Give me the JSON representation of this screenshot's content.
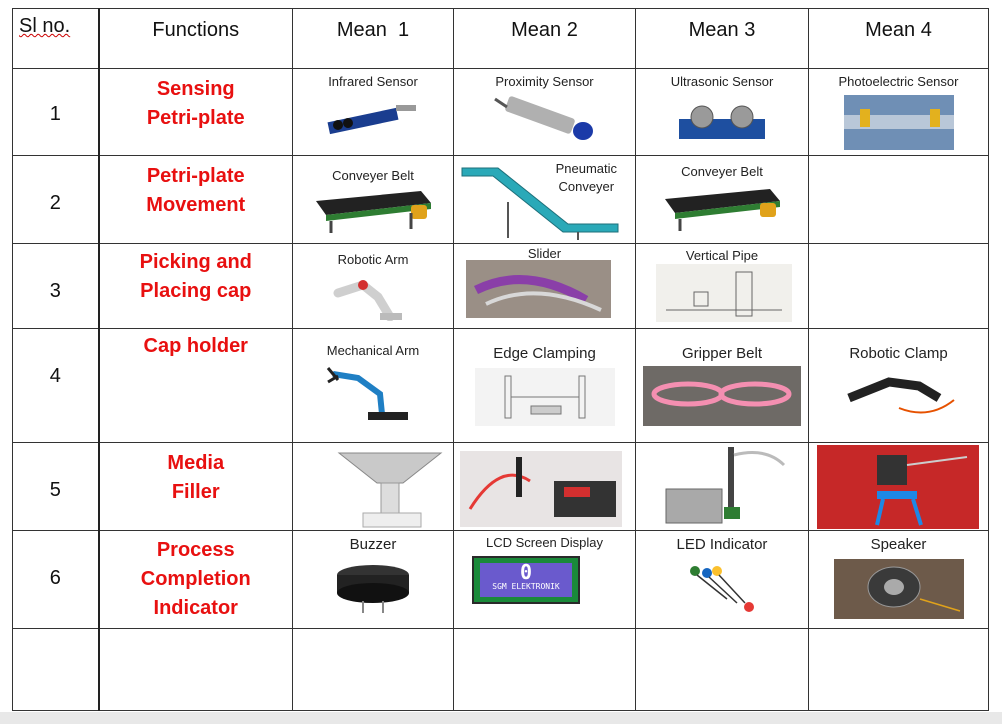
{
  "header": {
    "sl_no": "Sl no.",
    "functions": "Functions",
    "means": [
      "Mean  1",
      "Mean 2",
      "Mean 3",
      "Mean 4"
    ]
  },
  "rows": [
    {
      "sl": "1",
      "function_lines": [
        "Sensing",
        "Petri-plate"
      ],
      "means": [
        "Infrared Sensor",
        "Proximity Sensor",
        "Ultrasonic Sensor",
        "Photoelectric Sensor"
      ],
      "icons": [
        "infrared-sensor-image",
        "proximity-sensor-image",
        "ultrasonic-sensor-image",
        "photoelectric-sensor-image"
      ]
    },
    {
      "sl": "2",
      "function_lines": [
        "Petri-plate",
        "Movement"
      ],
      "means": [
        "Conveyer Belt",
        "Pneumatic Conveyer",
        "Conveyer Belt",
        ""
      ],
      "pneumatic_lines": [
        "Pneumatic",
        "Conveyer"
      ],
      "icons": [
        "conveyor-belt-image",
        "pneumatic-conveyor-image",
        "conveyor-belt-image",
        ""
      ]
    },
    {
      "sl": "3",
      "function_lines": [
        "Picking and",
        "Placing cap"
      ],
      "means": [
        "Robotic Arm",
        "Slider",
        "Vertical Pipe",
        ""
      ],
      "icons": [
        "robotic-arm-image",
        "slider-image",
        "vertical-pipe-image",
        ""
      ]
    },
    {
      "sl": "4",
      "function_lines": [
        "Cap holder"
      ],
      "means": [
        "Mechanical Arm",
        "Edge Clamping",
        "Gripper Belt",
        "Robotic Clamp"
      ],
      "icons": [
        "mechanical-arm-image",
        "edge-clamping-image",
        "gripper-belt-image",
        "robotic-clamp-image"
      ]
    },
    {
      "sl": "5",
      "function_lines": [
        "Media",
        "Filler"
      ],
      "means": [
        "",
        "",
        "",
        ""
      ],
      "icons": [
        "media-filler-hopper-image",
        "media-filler-pump-image",
        "media-filler-machine-image",
        "media-filler-stand-image"
      ]
    },
    {
      "sl": "6",
      "function_lines": [
        "Process",
        "Completion",
        "Indicator"
      ],
      "means": [
        "Buzzer",
        "LCD Screen Display",
        "LED Indicator",
        "Speaker"
      ],
      "lcd_text": [
        "0",
        "SGM ELEKTRONIK"
      ],
      "icons": [
        "buzzer-image",
        "lcd-display-image",
        "led-indicator-image",
        "speaker-image"
      ]
    }
  ],
  "colors": {
    "function_text": "#e81010",
    "border": "#333333"
  }
}
